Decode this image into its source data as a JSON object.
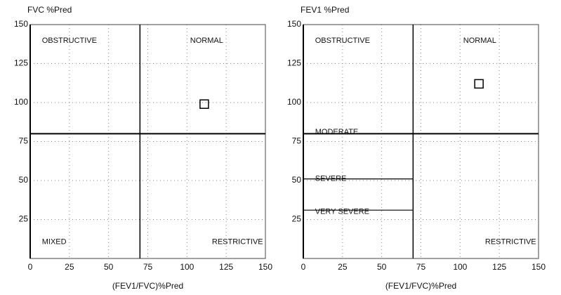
{
  "chart_data": [
    {
      "type": "scatter",
      "title": "FVC %Pred",
      "xlabel": "(FEV1/FVC)%Pred",
      "x": [
        111
      ],
      "values": [
        99
      ],
      "color": "#000000",
      "xlim": [
        0,
        150
      ],
      "ylim": [
        0,
        150
      ],
      "xticks": [
        0,
        25,
        50,
        75,
        100,
        125,
        150
      ],
      "yticks": [
        25,
        50,
        75,
        100,
        125,
        150
      ],
      "grid": true,
      "vlines": [
        70
      ],
      "hlines": [
        80
      ],
      "severity_lines": [],
      "annotations": [
        "OBSTRUCTIVE",
        "NORMAL",
        "MIXED",
        "RESTRICTIVE"
      ]
    },
    {
      "type": "scatter",
      "title": "FEV1 %Pred",
      "xlabel": "(FEV1/FVC)%Pred",
      "x": [
        112
      ],
      "values": [
        112
      ],
      "color": "#000000",
      "xlim": [
        0,
        150
      ],
      "ylim": [
        0,
        150
      ],
      "xticks": [
        0,
        25,
        50,
        75,
        100,
        125,
        150
      ],
      "yticks": [
        25,
        50,
        75,
        100,
        125,
        150
      ],
      "grid": true,
      "vlines": [
        70
      ],
      "hlines": [
        80
      ],
      "severity_lines": [
        51,
        31
      ],
      "annotations": [
        "OBSTRUCTIVE",
        "NORMAL",
        "MODERATE",
        "SEVERE",
        "VERY SEVERE",
        "RESTRICTIVE"
      ]
    }
  ]
}
